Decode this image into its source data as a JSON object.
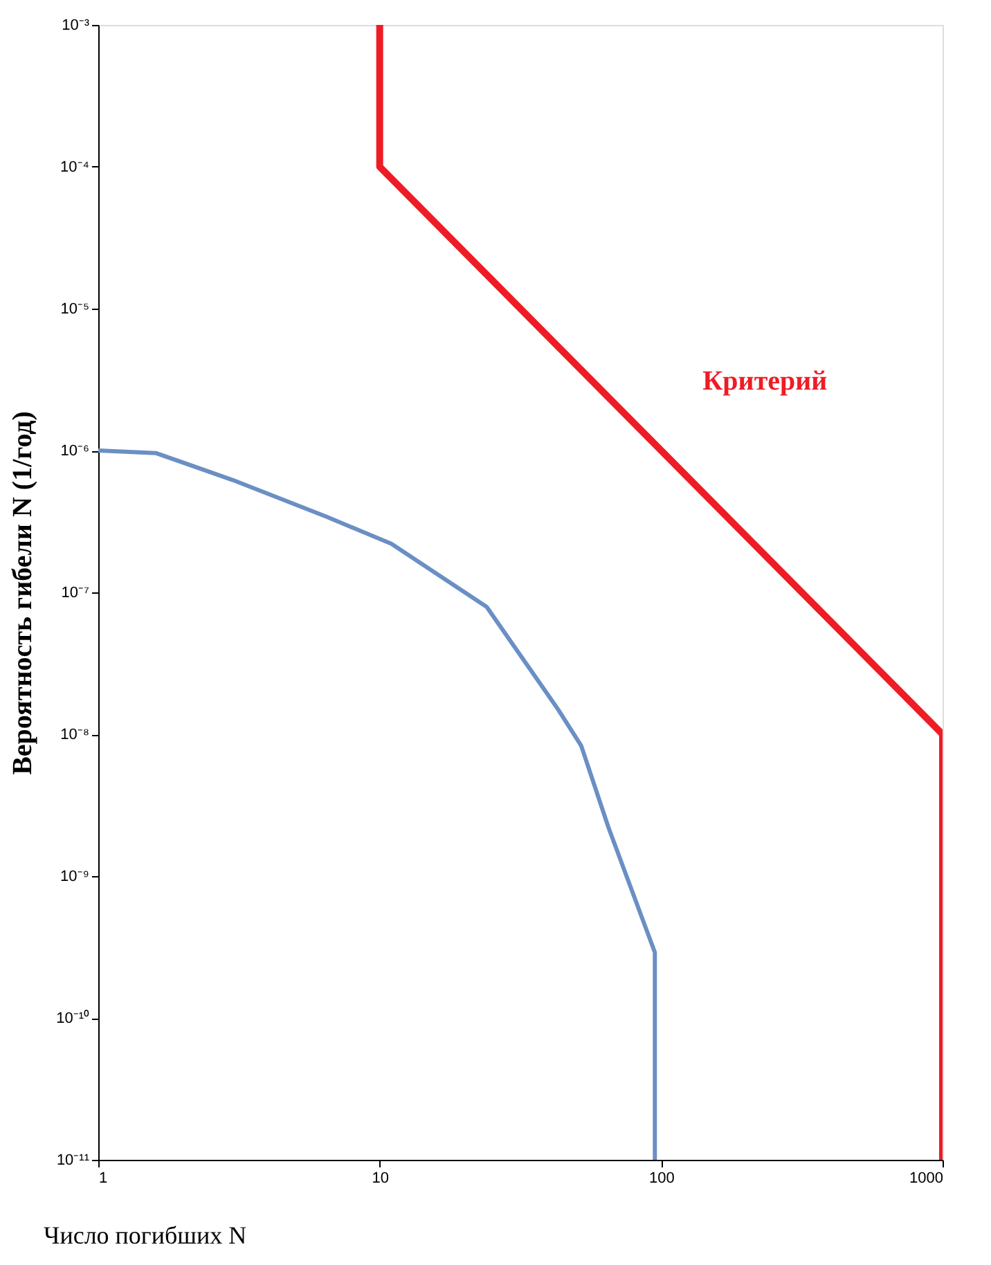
{
  "chart_data": {
    "type": "line",
    "xlabel": "Число погибших N",
    "ylabel": "Вероятность гибели N (1/год)",
    "log": "xy",
    "grid": false,
    "xlim": [
      1,
      1000
    ],
    "xticks": [
      1,
      10,
      100,
      1000
    ],
    "ylim": [
      1e-11,
      0.001
    ],
    "yticks": [
      {
        "value": 1e-11,
        "label": "10⁻¹¹"
      },
      {
        "value": 1e-10,
        "label": "10⁻¹⁰"
      },
      {
        "value": 1e-09,
        "label": "10⁻⁹"
      },
      {
        "value": 1e-08,
        "label": "10⁻⁸"
      },
      {
        "value": 1e-07,
        "label": "10⁻⁷"
      },
      {
        "value": 1e-06,
        "label": "10⁻⁶"
      },
      {
        "value": 1e-05,
        "label": "10⁻⁵"
      },
      {
        "value": 0.0001,
        "label": "10⁻⁴"
      },
      {
        "value": 0.001,
        "label": "10⁻³"
      }
    ],
    "series": [
      {
        "name": "Критерий",
        "color": "#ee1c25",
        "x": [
          10,
          10,
          1000,
          1000
        ],
        "values": [
          0.001,
          0.0001,
          1e-08,
          1e-11
        ]
      },
      {
        "color": "#6a8fc4",
        "x": [
          1,
          1.6,
          3,
          6.5,
          11,
          24,
          43,
          52,
          65,
          95,
          95
        ],
        "values": [
          1e-06,
          9.6e-07,
          6.2e-07,
          3.4e-07,
          2.2e-07,
          7.9e-08,
          1.5e-08,
          8.3e-09,
          2.2e-09,
          2.9e-10,
          1e-11
        ]
      }
    ]
  }
}
